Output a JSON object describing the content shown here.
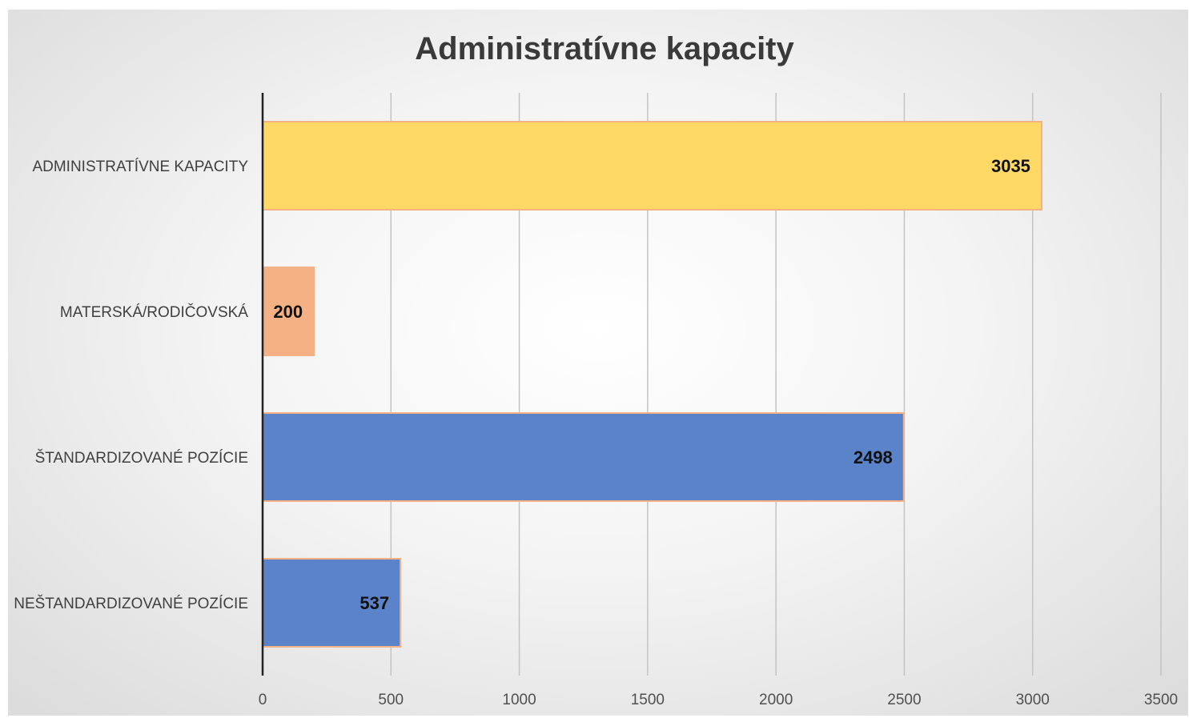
{
  "chart_data": {
    "type": "bar",
    "orientation": "horizontal",
    "title": "Administratívne kapacity",
    "xlabel": "",
    "ylabel": "",
    "xlim": [
      0,
      3500
    ],
    "x_ticks": [
      "0",
      "500",
      "1000",
      "1500",
      "2000",
      "2500",
      "3000",
      "3500"
    ],
    "grid": "vertical",
    "legend": "none",
    "categories": [
      "ADMINISTRATÍVNE KAPACITY",
      "MATERSKÁ/RODIČOVSKÁ",
      "ŠTANDARDIZOVANÉ POZÍCIE",
      "NEŠTANDARDIZOVANÉ POZÍCIE"
    ],
    "values": [
      3035,
      200,
      2498,
      537
    ],
    "data_labels": [
      "3035",
      "200",
      "2498",
      "537"
    ],
    "bar_colors": [
      "#ffd966",
      "#f4b183",
      "#5b83c9",
      "#5b83c9"
    ],
    "bar_border_color": "#f4b183"
  }
}
